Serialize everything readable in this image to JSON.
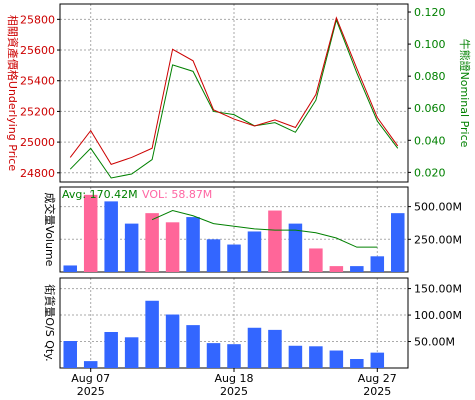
{
  "colors": {
    "underlying_line": "#cc0000",
    "warrant_line": "#008000",
    "avg_text": "#008000",
    "vol_text": "#ff66a3",
    "bar_blue": "#3366ff",
    "bar_pink": "#ff6699",
    "grid": "#aaaaaa",
    "frame": "#000000"
  },
  "chart_data": [
    {
      "type": "line",
      "panel": "price",
      "ylabel_left": "相關資產價格Underlying Price",
      "ylabel_right": "牛熊證Nominal Price",
      "yticks_left": [
        "24800",
        "25000",
        "25200",
        "25400",
        "25600",
        "25800"
      ],
      "yticks_right": [
        "0.020",
        "0.040",
        "0.060",
        "0.080",
        "0.100",
        "0.120"
      ],
      "ylim_left": [
        24740,
        25900
      ],
      "ylim_right": [
        0.014,
        0.125
      ],
      "grid": true,
      "series": [
        {
          "axis": "left",
          "values": [
            24900,
            25075,
            24855,
            24900,
            24960,
            25605,
            25530,
            25210,
            25150,
            25105,
            25145,
            25095,
            25310,
            25810,
            25480,
            25160,
            24975
          ]
        },
        {
          "axis": "right",
          "values": [
            0.022,
            0.035,
            0.0165,
            0.019,
            0.028,
            0.087,
            0.083,
            0.058,
            0.056,
            0.049,
            0.051,
            0.045,
            0.065,
            0.115,
            0.082,
            0.052,
            0.035
          ]
        }
      ]
    },
    {
      "type": "bar",
      "panel": "volume",
      "ylabel": "成交量Volume",
      "avg_label": "Avg: 170.42M",
      "vol_label": "VOL: 58.87M",
      "yticks": [
        "250.00M",
        "500.00M"
      ],
      "ylim": [
        0,
        650
      ],
      "grid": true,
      "colors_by_bar": [
        "blue",
        "pink",
        "blue",
        "blue",
        "pink",
        "pink",
        "blue",
        "blue",
        "blue",
        "blue",
        "pink",
        "blue",
        "pink",
        "pink",
        "blue",
        "blue",
        "blue"
      ],
      "values": [
        50,
        590,
        540,
        370,
        450,
        380,
        420,
        250,
        210,
        310,
        470,
        370,
        180,
        45,
        45,
        120,
        450
      ],
      "moving_average": {
        "start_index": 4,
        "values": [
          400,
          470,
          430,
          370,
          350,
          330,
          320,
          320,
          300,
          260,
          190,
          190
        ]
      }
    },
    {
      "type": "bar",
      "panel": "outstanding",
      "ylabel": "街貨量O/S Qty.",
      "yticks": [
        "50.00M",
        "100.00M",
        "150.00M"
      ],
      "ylim": [
        0,
        170
      ],
      "grid": true,
      "values": [
        51,
        13,
        68,
        58,
        127,
        101,
        81,
        47,
        45,
        76,
        72,
        42,
        41,
        33,
        17,
        29,
        0
      ]
    }
  ],
  "x_axis": {
    "labels": [
      {
        "index": 1,
        "line1": "Aug 07",
        "line2": "2025"
      },
      {
        "index": 8,
        "line1": "Aug 18",
        "line2": "2025"
      },
      {
        "index": 15,
        "line1": "Aug 27",
        "line2": "2025"
      }
    ],
    "n_points": 17
  }
}
